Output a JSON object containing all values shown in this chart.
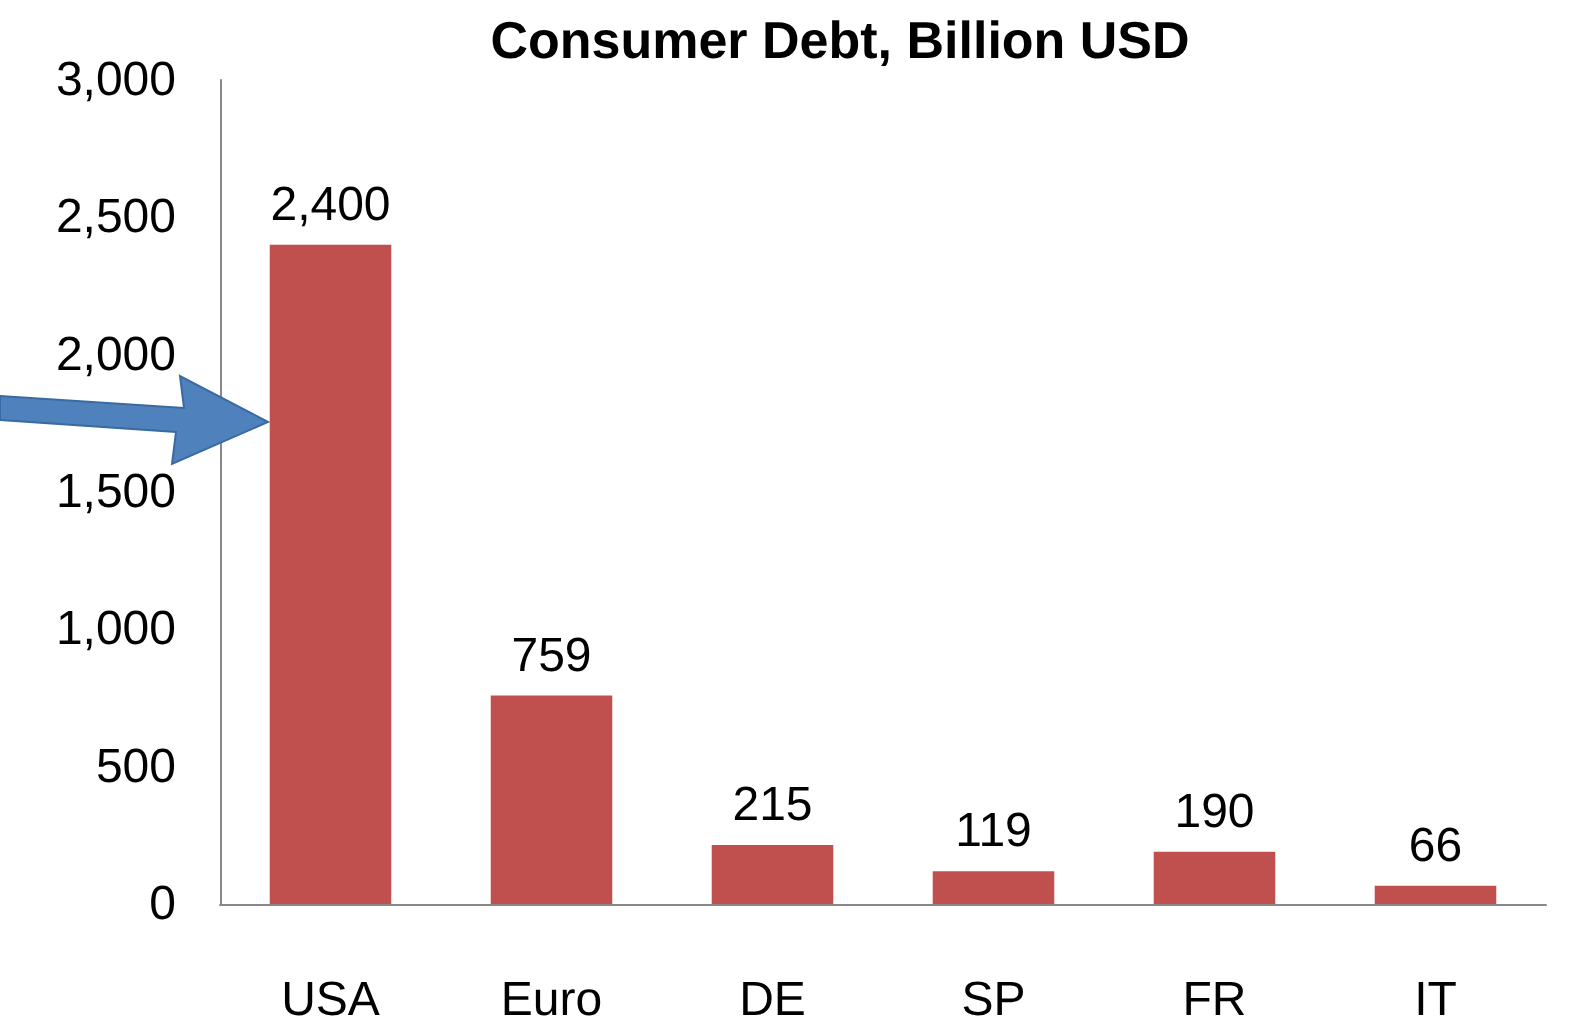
{
  "chart_data": {
    "type": "bar",
    "title": "Consumer Debt, Billion USD",
    "categories": [
      "USA",
      "Euro",
      "DE",
      "SP",
      "FR",
      "IT"
    ],
    "values": [
      2400,
      759,
      215,
      119,
      190,
      66
    ],
    "color": "#c0504d",
    "ylim": [
      0,
      3000
    ],
    "yticks": [
      {
        "value": 0,
        "label": "0"
      },
      {
        "value": 500,
        "label": "500"
      },
      {
        "value": 1000,
        "label": "1,000"
      },
      {
        "value": 1500,
        "label": "1,500"
      },
      {
        "value": 2000,
        "label": "2,000"
      },
      {
        "value": 2500,
        "label": "2,500"
      },
      {
        "value": 3000,
        "label": "3,000"
      }
    ],
    "value_labels": [
      "2,400",
      "759",
      "215",
      "119",
      "190",
      "66"
    ]
  }
}
